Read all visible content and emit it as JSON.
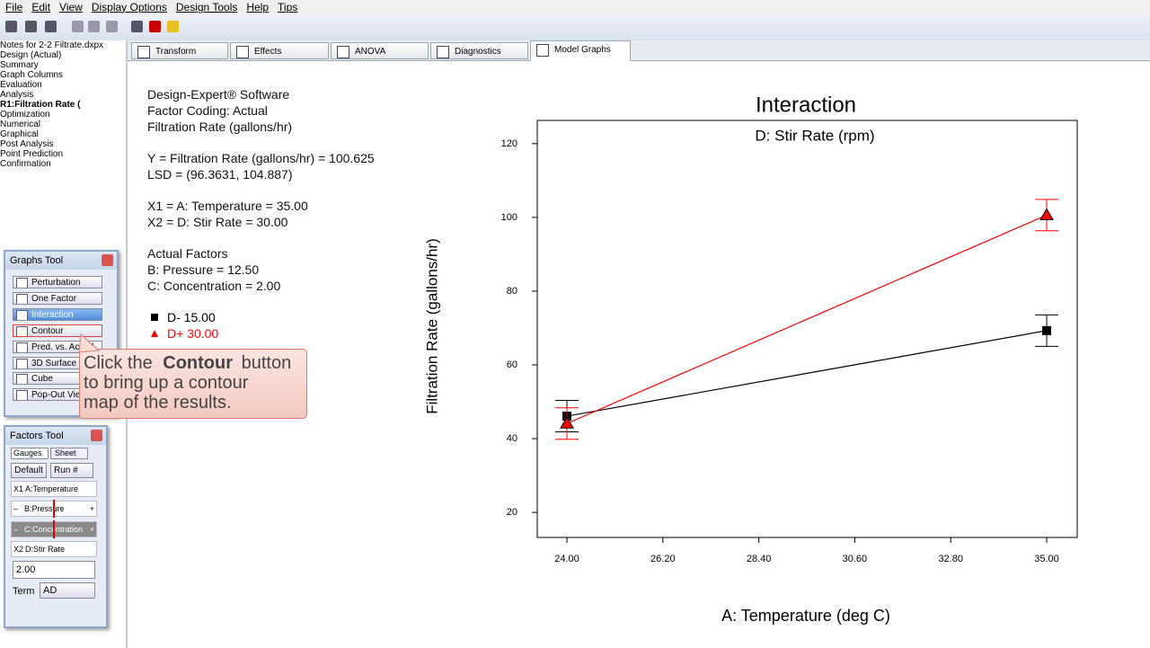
{
  "menu": [
    "File",
    "Edit",
    "View",
    "Display Options",
    "Design Tools",
    "Help",
    "Tips"
  ],
  "tree": [
    "Notes for 2-2 Filtrate.dxpx",
    "Design (Actual)",
    "Summary",
    "Graph Columns",
    "Evaluation",
    "Analysis",
    "R1:Filtration Rate (",
    "Optimization",
    "Numerical",
    "Graphical",
    "Post Analysis",
    "Point Prediction",
    "Confirmation"
  ],
  "tabs": [
    "Transform",
    "Effects",
    "ANOVA",
    "Diagnostics",
    "Model Graphs"
  ],
  "graphs_tool": {
    "title": "Graphs Tool",
    "buttons": [
      "Perturbation",
      "One Factor",
      "Interaction",
      "Contour",
      "Pred. vs. Actual",
      "3D Surface",
      "Cube",
      "Pop-Out View"
    ]
  },
  "callout": {
    "prefix": "Click the",
    "bold": "Contour",
    "suffix": "button",
    "lines": [
      "to bring up a contour",
      "map of the results."
    ]
  },
  "factors_tool": {
    "title": "Factors Tool",
    "tabs": [
      "Gauges",
      "Sheet"
    ],
    "default": "Default",
    "run": "Run #",
    "x1": "X1",
    "factor_a": "A:Temperature",
    "factor_b": "B:Pressure",
    "factor_c": "C:Concentration",
    "minus": "–",
    "plus": "+",
    "x2": "X2",
    "factor_d": "D:Stir Rate",
    "input": "2.00",
    "term_label": "Term",
    "term": "AD"
  },
  "info": [
    [
      "Design-Expert® Software",
      "Factor Coding: Actual",
      "Filtration Rate (gallons/hr)"
    ],
    [
      "Y = Filtration Rate (gallons/hr) = 100.625",
      "LSD = (96.3631, 104.887)"
    ],
    [
      "X1 = A: Temperature = 35.00",
      "X2 = D: Stir Rate = 30.00"
    ],
    [
      "Actual Factors",
      "B: Pressure = 12.50",
      "C: Concentration = 2.00"
    ]
  ],
  "chart_data": {
    "type": "line",
    "title": "Interaction",
    "subtitle": "D: Stir Rate (rpm)",
    "x_label": "A: Temperature (deg C)",
    "y_label": "Filtration Rate (gallons/hr)",
    "x": [
      24,
      35
    ],
    "xlim": [
      23.32,
      35.7
    ],
    "xticks": [
      {
        "value": 24,
        "label": "24.00"
      },
      {
        "value": 26.2,
        "label": "26.20"
      },
      {
        "value": 28.4,
        "label": "28.40"
      },
      {
        "value": 30.6,
        "label": "30.60"
      },
      {
        "value": 32.8,
        "label": "32.80"
      },
      {
        "value": 35,
        "label": "35.00"
      }
    ],
    "ylim": [
      13.2,
      126.3
    ],
    "yticks": [
      20,
      40,
      60,
      80,
      100,
      120
    ],
    "series": [
      {
        "name": "D- 15.00",
        "color": "#000000",
        "marker": "square",
        "values": [
          46.1,
          69.3
        ],
        "errors": [
          4.26,
          4.26
        ]
      },
      {
        "name": "D+ 30.00",
        "color": "#ff0000",
        "marker": "triangle",
        "values": [
          44.1,
          100.625
        ],
        "errors": [
          4.26,
          4.26
        ]
      }
    ]
  }
}
